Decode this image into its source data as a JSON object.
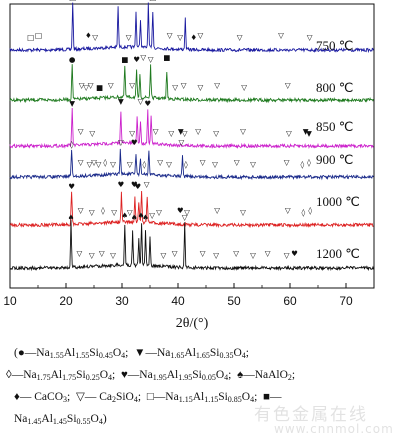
{
  "chart_data": {
    "type": "line",
    "title": "",
    "xlabel": "2θ/(°)",
    "ylabel": "",
    "xlim": [
      10,
      75
    ],
    "xticks": [
      "10",
      "20",
      "30",
      "40",
      "50",
      "60",
      "70"
    ],
    "xtick_values": [
      10,
      20,
      30,
      40,
      50,
      60,
      70
    ],
    "series": [
      {
        "name": "750 ℃",
        "color": "#1a1aa0"
      },
      {
        "name": "800 ℃",
        "color": "#1f7a1f"
      },
      {
        "name": "850 ℃",
        "color": "#cc22cc"
      },
      {
        "name": "900 ℃",
        "color": "#1a2a8a"
      },
      {
        "name": "1000 ℃",
        "color": "#dd2222"
      },
      {
        "name": "1200 ℃",
        "color": "#111111"
      }
    ],
    "peaks": {
      "750 ℃": [
        21.2,
        29.3,
        32.5,
        33.3,
        34.7,
        35.5,
        41.3
      ],
      "800 ℃": [
        21.1,
        30.5,
        32.6,
        33.2,
        35.1,
        38.0
      ],
      "850 ℃": [
        21.1,
        29.8,
        32.7,
        33.3,
        34.6,
        35.2
      ],
      "900 ℃": [
        21.0,
        29.7,
        32.5,
        33.3,
        34.8,
        40.8
      ],
      "1000 ℃": [
        21.0,
        29.9,
        32.3,
        33.0,
        33.5,
        34.5
      ],
      "1200 ℃": [
        20.9,
        30.5,
        31.9,
        33.0,
        33.5,
        34.2,
        35.0,
        41.2
      ]
    },
    "markers": {
      "750 ℃": [
        {
          "x": 13.7,
          "sym": "□"
        },
        {
          "x": 15.1,
          "sym": "□"
        },
        {
          "x": 21.2,
          "sym": "□"
        },
        {
          "x": 24.0,
          "sym": "♦"
        },
        {
          "x": 25.2,
          "sym": "▽"
        },
        {
          "x": 29.3,
          "sym": "♦"
        },
        {
          "x": 31.2,
          "sym": "▽"
        },
        {
          "x": 32.5,
          "sym": "▽"
        },
        {
          "x": 35.5,
          "sym": "□"
        },
        {
          "x": 38.5,
          "sym": "▽"
        },
        {
          "x": 40.4,
          "sym": "▽"
        },
        {
          "x": 41.3,
          "sym": "▽"
        },
        {
          "x": 42.8,
          "sym": "♦"
        },
        {
          "x": 44.0,
          "sym": "▽"
        },
        {
          "x": 51.0,
          "sym": "▽"
        },
        {
          "x": 58.4,
          "sym": "▽"
        },
        {
          "x": 63.5,
          "sym": "▽"
        }
      ],
      "800 ℃": [
        {
          "x": 21.1,
          "sym": "●"
        },
        {
          "x": 22.8,
          "sym": "▽"
        },
        {
          "x": 23.6,
          "sym": "▽"
        },
        {
          "x": 24.4,
          "sym": "▽"
        },
        {
          "x": 26.0,
          "sym": "■"
        },
        {
          "x": 28.0,
          "sym": "▽"
        },
        {
          "x": 30.5,
          "sym": "■"
        },
        {
          "x": 31.8,
          "sym": "▽"
        },
        {
          "x": 32.6,
          "sym": "♥"
        },
        {
          "x": 33.8,
          "sym": "▽"
        },
        {
          "x": 35.1,
          "sym": "▽"
        },
        {
          "x": 38.0,
          "sym": "■"
        },
        {
          "x": 39.5,
          "sym": "▽"
        },
        {
          "x": 41.0,
          "sym": "▽"
        },
        {
          "x": 44.0,
          "sym": "▽"
        },
        {
          "x": 47.0,
          "sym": "▽"
        },
        {
          "x": 51.8,
          "sym": "▽"
        },
        {
          "x": 59.6,
          "sym": "▽"
        }
      ],
      "850 ℃": [
        {
          "x": 21.1,
          "sym": "▼"
        },
        {
          "x": 22.6,
          "sym": "▽"
        },
        {
          "x": 24.7,
          "sym": "▽"
        },
        {
          "x": 29.8,
          "sym": "▼"
        },
        {
          "x": 31.8,
          "sym": "▽"
        },
        {
          "x": 33.3,
          "sym": "▽"
        },
        {
          "x": 34.6,
          "sym": "♥"
        },
        {
          "x": 36.0,
          "sym": "▽"
        },
        {
          "x": 38.8,
          "sym": "▽"
        },
        {
          "x": 40.5,
          "sym": "▼"
        },
        {
          "x": 41.2,
          "sym": "▽"
        },
        {
          "x": 43.6,
          "sym": "▽"
        },
        {
          "x": 46.8,
          "sym": "▽"
        },
        {
          "x": 51.6,
          "sym": "▽"
        },
        {
          "x": 59.8,
          "sym": "▽"
        },
        {
          "x": 62.8,
          "sym": "▼"
        },
        {
          "x": 63.4,
          "sym": "▼"
        }
      ],
      "900 ℃": [
        {
          "x": 21.0,
          "sym": "◊"
        },
        {
          "x": 22.6,
          "sym": "▽"
        },
        {
          "x": 24.2,
          "sym": "▽"
        },
        {
          "x": 25.0,
          "sym": "▽"
        },
        {
          "x": 25.8,
          "sym": "▽"
        },
        {
          "x": 27.0,
          "sym": "◊"
        },
        {
          "x": 28.4,
          "sym": "▽"
        },
        {
          "x": 29.8,
          "sym": "▽"
        },
        {
          "x": 31.4,
          "sym": "▽"
        },
        {
          "x": 32.2,
          "sym": "♥"
        },
        {
          "x": 34.0,
          "sym": "◊"
        },
        {
          "x": 36.8,
          "sym": "▽"
        },
        {
          "x": 38.4,
          "sym": "▽"
        },
        {
          "x": 40.6,
          "sym": "▽"
        },
        {
          "x": 41.4,
          "sym": "◊"
        },
        {
          "x": 44.4,
          "sym": "▽"
        },
        {
          "x": 46.6,
          "sym": "▽"
        },
        {
          "x": 50.5,
          "sym": "▽"
        },
        {
          "x": 53.4,
          "sym": "▽"
        },
        {
          "x": 59.4,
          "sym": "▽"
        },
        {
          "x": 62.2,
          "sym": "◊"
        },
        {
          "x": 63.4,
          "sym": "◊"
        }
      ],
      "1000 ℃": [
        {
          "x": 21.0,
          "sym": "♥"
        },
        {
          "x": 22.6,
          "sym": "▽"
        },
        {
          "x": 24.6,
          "sym": "▽"
        },
        {
          "x": 26.6,
          "sym": "◊"
        },
        {
          "x": 28.6,
          "sym": "▽"
        },
        {
          "x": 29.8,
          "sym": "♥"
        },
        {
          "x": 31.4,
          "sym": "▽"
        },
        {
          "x": 32.2,
          "sym": "♥"
        },
        {
          "x": 32.8,
          "sym": "♥"
        },
        {
          "x": 34.4,
          "sym": "▽"
        },
        {
          "x": 36.6,
          "sym": "▽"
        },
        {
          "x": 40.4,
          "sym": "♥"
        },
        {
          "x": 41.6,
          "sym": "▽"
        },
        {
          "x": 47.0,
          "sym": "▽"
        },
        {
          "x": 51.6,
          "sym": "▽"
        },
        {
          "x": 59.6,
          "sym": "▽"
        },
        {
          "x": 62.4,
          "sym": "◊"
        },
        {
          "x": 63.6,
          "sym": "◊"
        }
      ],
      "1200 ℃": [
        {
          "x": 20.9,
          "sym": "♠"
        },
        {
          "x": 22.4,
          "sym": "▽"
        },
        {
          "x": 24.6,
          "sym": "▽"
        },
        {
          "x": 26.4,
          "sym": "▽"
        },
        {
          "x": 28.4,
          "sym": "▽"
        },
        {
          "x": 30.5,
          "sym": "♠"
        },
        {
          "x": 32.2,
          "sym": "♠"
        },
        {
          "x": 33.4,
          "sym": "♠"
        },
        {
          "x": 34.2,
          "sym": "♠"
        },
        {
          "x": 35.4,
          "sym": "▽"
        },
        {
          "x": 37.4,
          "sym": "▽"
        },
        {
          "x": 39.4,
          "sym": "▽"
        },
        {
          "x": 41.2,
          "sym": "▽"
        },
        {
          "x": 44.4,
          "sym": "▽"
        },
        {
          "x": 46.8,
          "sym": "▽"
        },
        {
          "x": 50.4,
          "sym": "▽"
        },
        {
          "x": 53.4,
          "sym": "▽"
        },
        {
          "x": 56.0,
          "sym": "▽"
        },
        {
          "x": 59.4,
          "sym": "▽"
        },
        {
          "x": 60.8,
          "sym": "♥"
        }
      ]
    }
  },
  "legend": {
    "paren_open": "(",
    "line1_a_sym": "●",
    "line1_a_pre": "—Na",
    "line1_a_s1": "1.55",
    "line1_a_m1": "Al",
    "line1_a_s2": "1.55",
    "line1_a_m2": "Si",
    "line1_a_s3": "0.45",
    "line1_a_m3": "O",
    "line1_a_s4": "4",
    "line1_a_end": ";",
    "line1_b_sym": "▼",
    "line1_b_pre": "—Na",
    "line1_b_s1": "1.65",
    "line1_b_m1": "Al",
    "line1_b_s2": "1.65",
    "line1_b_m2": "Si",
    "line1_b_s3": "0.35",
    "line1_b_m3": "O",
    "line1_b_s4": "4",
    "line1_b_end": ";",
    "line2_a_sym": "◊",
    "line2_a_pre": "—Na",
    "line2_a_s1": "1.75",
    "line2_a_m1": "Al",
    "line2_a_s2": "1.75",
    "line2_a_m2": "Si",
    "line2_a_s3": "0.25",
    "line2_a_m3": "O",
    "line2_a_s4": "4",
    "line2_a_end": ";",
    "line2_b_sym": "♥",
    "line2_b_pre": "—Na",
    "line2_b_s1": "1.95",
    "line2_b_m1": "Al",
    "line2_b_s2": "1.95",
    "line2_b_m2": "Si",
    "line2_b_s3": "0.05",
    "line2_b_m3": "O",
    "line2_b_s4": "4",
    "line2_b_end": ";",
    "line2_c_sym": "♠",
    "line2_c_text": "—NaAlO",
    "line2_c_s1": "2",
    "line2_c_end": ";",
    "line3_a_sym": "♦",
    "line3_a_text": "— CaCO",
    "line3_a_s1": "3",
    "line3_a_end": ";",
    "line3_b_sym": "▽",
    "line3_b_text": "— Ca",
    "line3_b_s1": "2",
    "line3_b_m1": "SiO",
    "line3_b_s2": "4",
    "line3_b_end": ";",
    "line3_c_sym": "□",
    "line3_c_pre": "—Na",
    "line3_c_s1": "1.15",
    "line3_c_m1": "Al",
    "line3_c_s2": "1.15",
    "line3_c_m2": "Si",
    "line3_c_s3": "0.85",
    "line3_c_m3": "O",
    "line3_c_s4": "4",
    "line3_c_end": ";",
    "line3_d_sym": "■",
    "line3_d_text": "—",
    "line4_pre": "Na",
    "line4_s1": "1.45",
    "line4_m1": "Al",
    "line4_s2": "1.45",
    "line4_m2": "Si",
    "line4_s3": "0.55",
    "line4_m3": "O",
    "line4_s4": "4",
    "line4_end": ")"
  },
  "watermark": {
    "cn": "有色金属在线",
    "url": "www.cnnmol.com"
  }
}
